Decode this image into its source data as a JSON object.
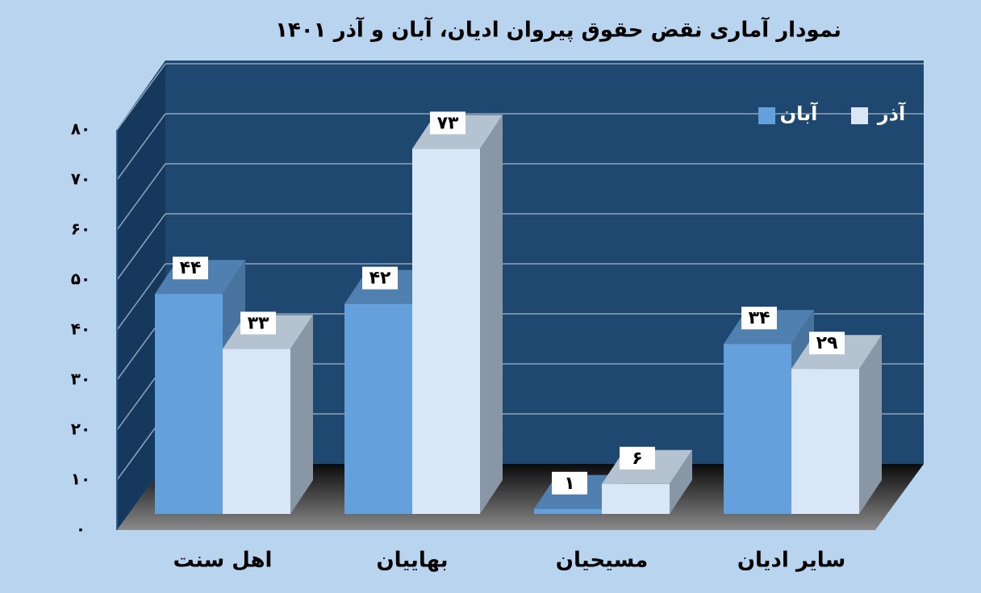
{
  "chart_data": {
    "type": "bar",
    "title": "نمودار آماری نقض حقوق پیروان ادیان، آبان و آذر ۱۴۰۱",
    "categories": [
      "اهل سنت",
      "بهاییان",
      "مسیحیان",
      "سایر ادیان"
    ],
    "series": [
      {
        "name": "آبان",
        "color": "#64a0dc",
        "values": [
          44,
          42,
          1,
          34
        ],
        "value_labels": [
          "۴۴",
          "۴۲",
          "۱",
          "۳۴"
        ]
      },
      {
        "name": "آذر",
        "color": "#d9e6f5",
        "values": [
          33,
          73,
          6,
          29
        ],
        "value_labels": [
          "۳۳",
          "۷۳",
          "۶",
          "۲۹"
        ]
      }
    ],
    "ylim": [
      0,
      80
    ],
    "yticks": [
      {
        "value": 0,
        "label": "۰"
      },
      {
        "value": 10,
        "label": "۱۰"
      },
      {
        "value": 20,
        "label": "۲۰"
      },
      {
        "value": 30,
        "label": "۳۰"
      },
      {
        "value": 40,
        "label": "۴۰"
      },
      {
        "value": 50,
        "label": "۵۰"
      },
      {
        "value": 60,
        "label": "۶۰"
      },
      {
        "value": 70,
        "label": "۷۰"
      },
      {
        "value": 80,
        "label": "۸۰"
      }
    ],
    "grid": true,
    "legend": "top-right"
  }
}
